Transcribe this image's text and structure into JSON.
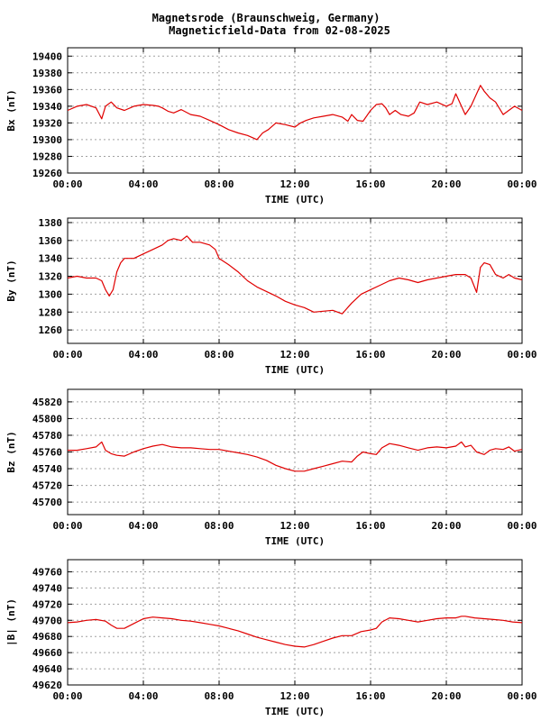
{
  "header": {
    "title_line1": "Magnetsrode (Braunschweig, Germany)",
    "title_line2": "Magneticfield-Data from 02-08-2025"
  },
  "colors": {
    "series": "#e00000",
    "grid": "#a0a0a0",
    "frame": "#000000"
  },
  "chart_data": [
    {
      "type": "line",
      "ylabel": "Bx (nT)",
      "xlabel": "TIME (UTC)",
      "xlim": [
        0,
        24
      ],
      "xticks": [
        "00:00",
        "04:00",
        "08:00",
        "12:00",
        "16:00",
        "20:00",
        "00:00"
      ],
      "ylim": [
        19260,
        19410
      ],
      "yticks": [
        19260,
        19280,
        19300,
        19320,
        19340,
        19360,
        19380,
        19400
      ],
      "grid": true,
      "series": [
        {
          "x": [
            0,
            0.5,
            1,
            1.5,
            1.8,
            2.0,
            2.3,
            2.6,
            3.0,
            3.5,
            4.0,
            4.5,
            4.8,
            5.0,
            5.3,
            5.6,
            6.0,
            6.5,
            7.0,
            7.5,
            8.0,
            8.5,
            9.0,
            9.5,
            9.8,
            10.0,
            10.3,
            10.6,
            11.0,
            11.5,
            12.0,
            12.3,
            12.6,
            13.0,
            13.5,
            14.0,
            14.5,
            14.8,
            15.0,
            15.3,
            15.6,
            16.0,
            16.3,
            16.6,
            16.8,
            17.0,
            17.3,
            17.6,
            18.0,
            18.3,
            18.6,
            19.0,
            19.5,
            20.0,
            20.3,
            20.5,
            20.8,
            21.0,
            21.3,
            21.6,
            21.8,
            22.0,
            22.3,
            22.6,
            23.0,
            23.3,
            23.6,
            24.0
          ],
          "y": [
            19335,
            19340,
            19342,
            19338,
            19325,
            19340,
            19345,
            19338,
            19335,
            19340,
            19342,
            19341,
            19340,
            19338,
            19334,
            19332,
            19336,
            19330,
            19328,
            19323,
            19318,
            19312,
            19308,
            19305,
            19302,
            19300,
            19308,
            19312,
            19320,
            19318,
            19315,
            19320,
            19323,
            19326,
            19328,
            19330,
            19327,
            19322,
            19330,
            19323,
            19322,
            19335,
            19342,
            19343,
            19338,
            19330,
            19335,
            19330,
            19328,
            19332,
            19345,
            19342,
            19345,
            19340,
            19343,
            19355,
            19340,
            19330,
            19340,
            19355,
            19365,
            19358,
            19350,
            19345,
            19330,
            19335,
            19340,
            19335
          ]
        }
      ]
    },
    {
      "type": "line",
      "ylabel": "By (nT)",
      "xlabel": "TIME (UTC)",
      "xlim": [
        0,
        24
      ],
      "xticks": [
        "00:00",
        "04:00",
        "08:00",
        "12:00",
        "16:00",
        "20:00",
        "00:00"
      ],
      "ylim": [
        1245,
        1385
      ],
      "yticks": [
        1260,
        1280,
        1300,
        1320,
        1340,
        1360,
        1380
      ],
      "grid": true,
      "series": [
        {
          "x": [
            0,
            0.5,
            1.0,
            1.5,
            1.8,
            2.0,
            2.2,
            2.4,
            2.6,
            2.8,
            3.0,
            3.5,
            4.0,
            4.5,
            5.0,
            5.3,
            5.6,
            6.0,
            6.3,
            6.6,
            7.0,
            7.5,
            7.8,
            8.0,
            8.5,
            9.0,
            9.5,
            10.0,
            10.5,
            11.0,
            11.5,
            12.0,
            12.5,
            13.0,
            13.5,
            14.0,
            14.5,
            15.0,
            15.5,
            16.0,
            16.5,
            17.0,
            17.5,
            18.0,
            18.5,
            19.0,
            19.5,
            20.0,
            20.5,
            21.0,
            21.3,
            21.6,
            21.8,
            22.0,
            22.3,
            22.6,
            23.0,
            23.3,
            23.6,
            24.0
          ],
          "y": [
            1318,
            1320,
            1318,
            1318,
            1315,
            1305,
            1298,
            1305,
            1325,
            1335,
            1340,
            1340,
            1345,
            1350,
            1355,
            1360,
            1362,
            1360,
            1365,
            1358,
            1358,
            1355,
            1350,
            1340,
            1333,
            1325,
            1315,
            1308,
            1303,
            1298,
            1292,
            1288,
            1285,
            1280,
            1281,
            1282,
            1278,
            1290,
            1300,
            1305,
            1310,
            1315,
            1318,
            1316,
            1313,
            1316,
            1318,
            1320,
            1322,
            1322,
            1318,
            1302,
            1330,
            1335,
            1333,
            1322,
            1318,
            1322,
            1318,
            1316
          ]
        }
      ]
    },
    {
      "type": "line",
      "ylabel": "Bz (nT)",
      "xlabel": "TIME (UTC)",
      "xlim": [
        0,
        24
      ],
      "xticks": [
        "00:00",
        "04:00",
        "08:00",
        "12:00",
        "16:00",
        "20:00",
        "00:00"
      ],
      "ylim": [
        45685,
        45835
      ],
      "yticks": [
        45700,
        45720,
        45740,
        45760,
        45780,
        45800,
        45820
      ],
      "grid": true,
      "series": [
        {
          "x": [
            0,
            0.5,
            1.0,
            1.5,
            1.8,
            2.0,
            2.3,
            2.6,
            3.0,
            3.5,
            4.0,
            4.5,
            5.0,
            5.5,
            6.0,
            6.5,
            7.0,
            7.5,
            8.0,
            8.5,
            9.0,
            9.5,
            10.0,
            10.5,
            11.0,
            11.5,
            12.0,
            12.5,
            13.0,
            13.5,
            14.0,
            14.5,
            15.0,
            15.3,
            15.6,
            16.0,
            16.3,
            16.6,
            17.0,
            17.5,
            18.0,
            18.5,
            19.0,
            19.5,
            20.0,
            20.5,
            20.8,
            21.0,
            21.3,
            21.6,
            22.0,
            22.3,
            22.6,
            23.0,
            23.3,
            23.6,
            24.0
          ],
          "y": [
            45762,
            45762,
            45764,
            45766,
            45772,
            45762,
            45758,
            45756,
            45755,
            45760,
            45764,
            45767,
            45769,
            45766,
            45765,
            45765,
            45764,
            45763,
            45763,
            45761,
            45759,
            45757,
            45754,
            45750,
            45744,
            45740,
            45737,
            45737,
            45740,
            45743,
            45746,
            45749,
            45748,
            45755,
            45760,
            45758,
            45757,
            45765,
            45770,
            45768,
            45765,
            45762,
            45765,
            45766,
            45765,
            45767,
            45772,
            45766,
            45768,
            45760,
            45757,
            45762,
            45764,
            45763,
            45766,
            45761,
            45763
          ]
        }
      ]
    },
    {
      "type": "line",
      "ylabel": "|B| (nT)",
      "xlabel": "TIME (UTC)",
      "xlim": [
        0,
        24
      ],
      "xticks": [
        "00:00",
        "04:00",
        "08:00",
        "12:00",
        "16:00",
        "20:00",
        "00:00"
      ],
      "ylim": [
        49620,
        49775
      ],
      "yticks": [
        49620,
        49640,
        49660,
        49680,
        49700,
        49720,
        49740,
        49760
      ],
      "grid": true,
      "series": [
        {
          "x": [
            0,
            0.5,
            1.0,
            1.5,
            2.0,
            2.3,
            2.6,
            3.0,
            3.5,
            4.0,
            4.5,
            5.0,
            5.5,
            6.0,
            6.5,
            7.0,
            7.5,
            8.0,
            8.5,
            9.0,
            9.5,
            10.0,
            10.5,
            11.0,
            11.5,
            12.0,
            12.5,
            13.0,
            13.5,
            14.0,
            14.5,
            15.0,
            15.5,
            16.0,
            16.3,
            16.6,
            17.0,
            17.5,
            18.0,
            18.5,
            19.0,
            19.5,
            20.0,
            20.5,
            20.8,
            21.0,
            21.5,
            22.0,
            22.5,
            23.0,
            23.5,
            24.0
          ],
          "y": [
            49697,
            49698,
            49700,
            49701,
            49699,
            49694,
            49690,
            49690,
            49696,
            49702,
            49704,
            49703,
            49702,
            49700,
            49699,
            49697,
            49695,
            49693,
            49690,
            49687,
            49683,
            49679,
            49676,
            49673,
            49670,
            49668,
            49667,
            49670,
            49674,
            49678,
            49681,
            49681,
            49686,
            49688,
            49690,
            49698,
            49703,
            49702,
            49700,
            49698,
            49700,
            49702,
            49703,
            49703,
            49705,
            49705,
            49703,
            49702,
            49701,
            49700,
            49698,
            49697
          ]
        }
      ]
    }
  ]
}
